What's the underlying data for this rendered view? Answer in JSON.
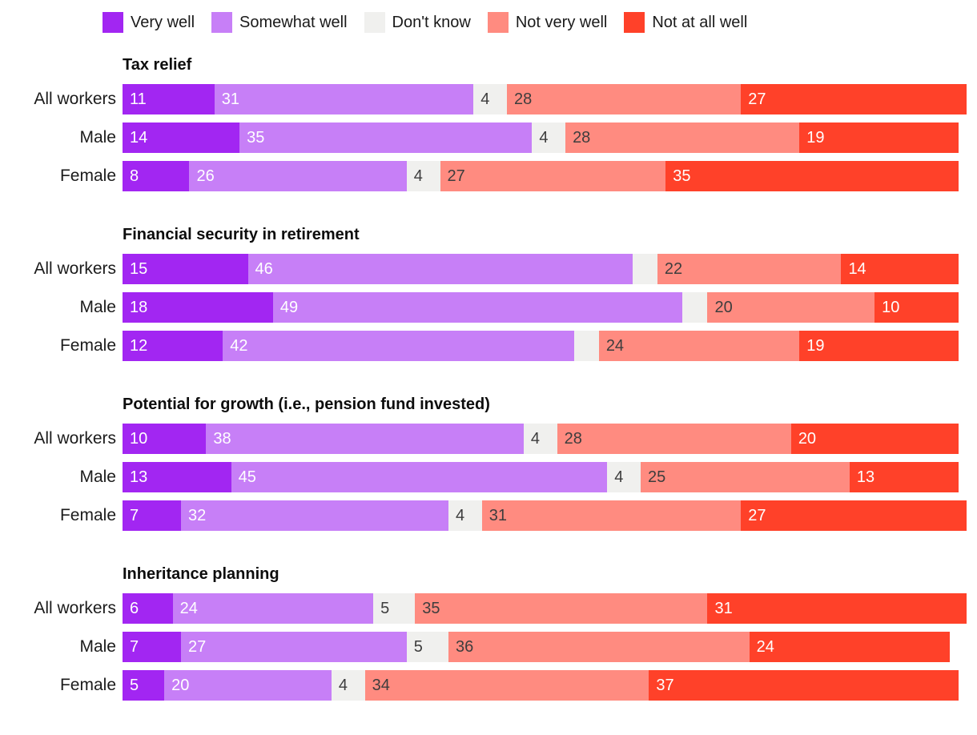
{
  "chart_data": {
    "type": "bar",
    "variant": "horizontal-stacked",
    "unit": "percent",
    "axis_max": 101,
    "grid": false,
    "legend_position": "top",
    "min_value_for_label": 4,
    "series": [
      {
        "name": "Very well",
        "color": "#A226F2",
        "text_color": "#FFFFFF"
      },
      {
        "name": "Somewhat well",
        "color": "#C77FF7",
        "text_color": "#FFFFFF"
      },
      {
        "name": "Don't know",
        "color": "#F0F0EE",
        "text_color": "#3D3D3D"
      },
      {
        "name": "Not very well",
        "color": "#FF8B80",
        "text_color": "#3D3D3D"
      },
      {
        "name": "Not at all well",
        "color": "#FF4129",
        "text_color": "#FFFFFF"
      }
    ],
    "groups": [
      {
        "title": "Tax relief",
        "rows": [
          {
            "label": "All workers",
            "values": [
              11,
              31,
              4,
              28,
              27
            ]
          },
          {
            "label": "Male",
            "values": [
              14,
              35,
              4,
              28,
              19
            ]
          },
          {
            "label": "Female",
            "values": [
              8,
              26,
              4,
              27,
              35
            ]
          }
        ]
      },
      {
        "title": "Financial security in retirement",
        "rows": [
          {
            "label": "All workers",
            "values": [
              15,
              46,
              3,
              22,
              14
            ]
          },
          {
            "label": "Male",
            "values": [
              18,
              49,
              3,
              20,
              10
            ]
          },
          {
            "label": "Female",
            "values": [
              12,
              42,
              3,
              24,
              19
            ]
          }
        ]
      },
      {
        "title": "Potential for growth (i.e., pension fund invested)",
        "rows": [
          {
            "label": "All workers",
            "values": [
              10,
              38,
              4,
              28,
              20
            ]
          },
          {
            "label": "Male",
            "values": [
              13,
              45,
              4,
              25,
              13
            ]
          },
          {
            "label": "Female",
            "values": [
              7,
              32,
              4,
              31,
              27
            ]
          }
        ]
      },
      {
        "title": "Inheritance planning",
        "rows": [
          {
            "label": "All workers",
            "values": [
              6,
              24,
              5,
              35,
              31
            ]
          },
          {
            "label": "Male",
            "values": [
              7,
              27,
              5,
              36,
              24
            ]
          },
          {
            "label": "Female",
            "values": [
              5,
              20,
              4,
              34,
              37
            ]
          }
        ]
      }
    ]
  }
}
